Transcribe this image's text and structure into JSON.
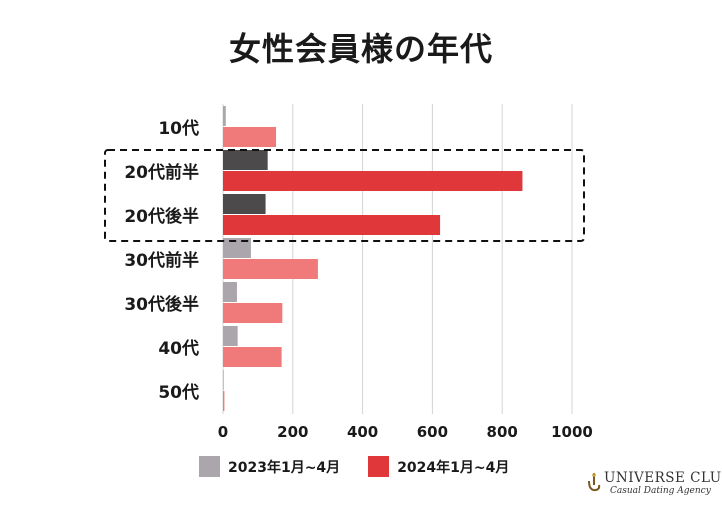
{
  "chart_data": {
    "type": "bar",
    "orientation": "horizontal",
    "title": "女性会員様の年代",
    "categories": [
      "10代",
      "20代前半",
      "20代後半",
      "30代前半",
      "30代後半",
      "40代",
      "50代"
    ],
    "series": [
      {
        "name": "2023年1月~4月",
        "color": "#aaa6ac",
        "highlight_color": "#4d4a4b",
        "values": [
          8,
          128,
          122,
          80,
          40,
          42,
          2
        ]
      },
      {
        "name": "2024年1月~4月",
        "color": "#f07a7a",
        "highlight_color": "#e0373a",
        "values": [
          152,
          858,
          622,
          272,
          170,
          168,
          4
        ]
      }
    ],
    "highlighted_categories": [
      "20代前半",
      "20代後半"
    ],
    "xlim": [
      0,
      1000
    ],
    "xticks": [
      0,
      200,
      400,
      600,
      800,
      1000
    ],
    "grid": true,
    "legend_position": "bottom"
  },
  "legend": {
    "series1_label": "2023年1月~4月",
    "series2_label": "2024年1月~4月",
    "series1_color": "#aaa6ac",
    "series2_color": "#e0373a"
  },
  "brand": {
    "name": "UNIVERSE CLUB",
    "tagline": "Casual Dating Agency"
  }
}
